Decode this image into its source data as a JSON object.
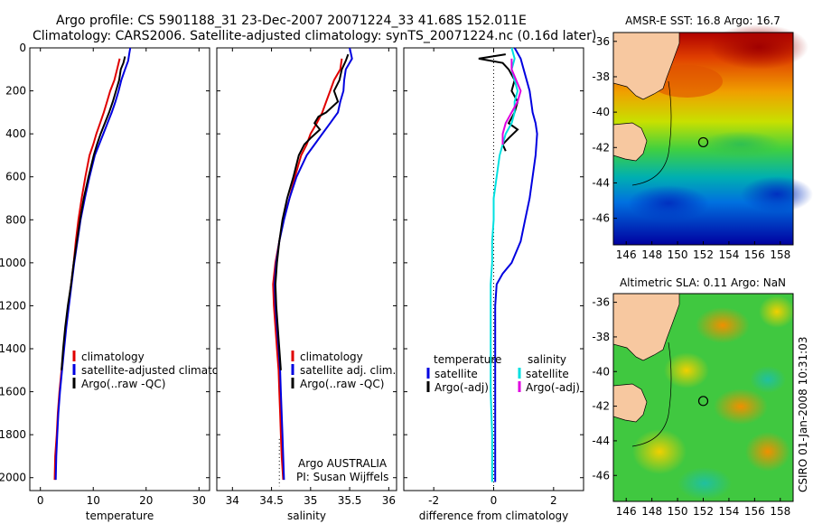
{
  "header": {
    "line1": "Argo profile: CS 5901188_31 23-Dec-2007 20071224_33 41.68S 152.011E",
    "line2": "Climatology: CARS2006. Satellite-adjusted climatology: synTS_20071224.nc (0.16d later)"
  },
  "side_stamp": "CSIRO 01-Jan-2008 10:31:03",
  "colors": {
    "red": "#e00000",
    "blue": "#0000e0",
    "black": "#000000",
    "cyan": "#00e0e0",
    "magenta": "#e000e0",
    "land": "#f7c8a0"
  },
  "chart_data": [
    {
      "id": "temperature",
      "type": "line",
      "xlabel": "temperature",
      "xlim": [
        -2,
        32
      ],
      "xticks": [
        0,
        10,
        20,
        30
      ],
      "ylim": [
        0,
        2060
      ],
      "yticks": [
        0,
        200,
        400,
        600,
        800,
        1000,
        1200,
        1400,
        1600,
        1800,
        2000
      ],
      "yreversed": true,
      "legend": [
        "climatology",
        "satellite-adjusted climatolog",
        "Argo(..raw -QC)"
      ],
      "legend_colors": [
        "#e00000",
        "#0000e0",
        "#000000"
      ],
      "series": [
        {
          "color": "#e00000",
          "points": [
            [
              15,
              50
            ],
            [
              14.5,
              100
            ],
            [
              14,
              150
            ],
            [
              13.2,
              200
            ],
            [
              12.6,
              250
            ],
            [
              12,
              300
            ],
            [
              11.3,
              350
            ],
            [
              10.6,
              400
            ],
            [
              10,
              450
            ],
            [
              9.3,
              500
            ],
            [
              8.5,
              600
            ],
            [
              7.8,
              700
            ],
            [
              7.2,
              800
            ],
            [
              6.7,
              900
            ],
            [
              6.3,
              1000
            ],
            [
              5.8,
              1100
            ],
            [
              5.3,
              1200
            ],
            [
              4.8,
              1300
            ],
            [
              4.4,
              1400
            ],
            [
              4,
              1500
            ],
            [
              3.6,
              1600
            ],
            [
              3.3,
              1700
            ],
            [
              3.1,
              1800
            ],
            [
              2.8,
              1900
            ],
            [
              2.7,
              2010
            ]
          ]
        },
        {
          "color": "#0000e0",
          "points": [
            [
              17,
              0
            ],
            [
              16.8,
              30
            ],
            [
              16.6,
              60
            ],
            [
              16,
              100
            ],
            [
              15.3,
              150
            ],
            [
              14.8,
              200
            ],
            [
              14.2,
              250
            ],
            [
              13.5,
              300
            ],
            [
              12.7,
              350
            ],
            [
              11.9,
              400
            ],
            [
              11.1,
              450
            ],
            [
              10.3,
              500
            ],
            [
              9.3,
              600
            ],
            [
              8.4,
              700
            ],
            [
              7.6,
              800
            ],
            [
              7,
              900
            ],
            [
              6.4,
              1000
            ],
            [
              5.9,
              1100
            ],
            [
              5.4,
              1200
            ],
            [
              4.9,
              1300
            ],
            [
              4.5,
              1400
            ],
            [
              4.1,
              1500
            ],
            [
              3.7,
              1600
            ],
            [
              3.4,
              1700
            ],
            [
              3.2,
              1800
            ],
            [
              3,
              1900
            ],
            [
              2.9,
              2010
            ]
          ]
        },
        {
          "color": "#000000",
          "points": [
            [
              16,
              40
            ],
            [
              15.7,
              70
            ],
            [
              15.2,
              100
            ],
            [
              14.9,
              150
            ],
            [
              14.3,
              200
            ],
            [
              13.7,
              250
            ],
            [
              13,
              300
            ],
            [
              12.2,
              350
            ],
            [
              11.4,
              400
            ],
            [
              10.7,
              450
            ],
            [
              10.1,
              500
            ],
            [
              9.1,
              600
            ],
            [
              8.2,
              700
            ],
            [
              7.5,
              800
            ],
            [
              6.9,
              900
            ],
            [
              6.3,
              1000
            ],
            [
              5.8,
              1100
            ],
            [
              5.2,
              1200
            ],
            [
              4.7,
              1300
            ],
            [
              4.3,
              1400
            ],
            [
              4,
              1500
            ]
          ]
        }
      ]
    },
    {
      "id": "salinity",
      "type": "line",
      "xlabel": "salinity",
      "xlim": [
        33.8,
        36.1
      ],
      "xticks": [
        34,
        34.5,
        35,
        35.5,
        36
      ],
      "ylim": [
        0,
        2060
      ],
      "yreversed": true,
      "legend": [
        "climatology",
        "satellite adj. clim.",
        "Argo(..raw -QC)"
      ],
      "legend_colors": [
        "#e00000",
        "#0000e0",
        "#000000"
      ],
      "annotation": [
        "Argo AUSTRALIA",
        "PI: Susan Wijffels"
      ],
      "series": [
        {
          "color": "#e00000",
          "points": [
            [
              35.4,
              50
            ],
            [
              35.38,
              100
            ],
            [
              35.3,
              150
            ],
            [
              35.25,
              200
            ],
            [
              35.2,
              250
            ],
            [
              35.15,
              300
            ],
            [
              35.08,
              350
            ],
            [
              35,
              400
            ],
            [
              34.95,
              450
            ],
            [
              34.88,
              500
            ],
            [
              34.8,
              600
            ],
            [
              34.73,
              700
            ],
            [
              34.65,
              800
            ],
            [
              34.6,
              900
            ],
            [
              34.55,
              1000
            ],
            [
              34.52,
              1100
            ],
            [
              34.53,
              1200
            ],
            [
              34.55,
              1300
            ],
            [
              34.57,
              1400
            ],
            [
              34.59,
              1500
            ],
            [
              34.6,
              1600
            ],
            [
              34.61,
              1700
            ],
            [
              34.62,
              1800
            ],
            [
              34.63,
              1900
            ],
            [
              34.65,
              2010
            ]
          ]
        },
        {
          "color": "#0000e0",
          "points": [
            [
              35.5,
              0
            ],
            [
              35.53,
              50
            ],
            [
              35.45,
              100
            ],
            [
              35.43,
              150
            ],
            [
              35.42,
              200
            ],
            [
              35.38,
              250
            ],
            [
              35.35,
              300
            ],
            [
              35.25,
              350
            ],
            [
              35.15,
              400
            ],
            [
              35.05,
              450
            ],
            [
              34.95,
              500
            ],
            [
              34.82,
              600
            ],
            [
              34.73,
              700
            ],
            [
              34.66,
              800
            ],
            [
              34.6,
              900
            ],
            [
              34.56,
              1000
            ],
            [
              34.54,
              1100
            ],
            [
              34.55,
              1200
            ],
            [
              34.57,
              1300
            ],
            [
              34.59,
              1400
            ],
            [
              34.61,
              1500
            ],
            [
              34.62,
              1600
            ],
            [
              34.63,
              1700
            ],
            [
              34.64,
              1800
            ],
            [
              34.65,
              1900
            ],
            [
              34.66,
              2010
            ]
          ]
        },
        {
          "color": "#000000",
          "points": [
            [
              35.48,
              30
            ],
            [
              35.45,
              60
            ],
            [
              35.4,
              100
            ],
            [
              35.37,
              150
            ],
            [
              35.3,
              200
            ],
            [
              35.35,
              250
            ],
            [
              35.2,
              300
            ],
            [
              35.1,
              320
            ],
            [
              35.05,
              350
            ],
            [
              35.12,
              380
            ],
            [
              35,
              420
            ],
            [
              34.92,
              450
            ],
            [
              34.85,
              500
            ],
            [
              34.78,
              600
            ],
            [
              34.7,
              700
            ],
            [
              34.64,
              800
            ],
            [
              34.6,
              900
            ],
            [
              34.57,
              1000
            ],
            [
              34.55,
              1100
            ],
            [
              34.56,
              1200
            ],
            [
              34.58,
              1300
            ],
            [
              34.6,
              1400
            ],
            [
              34.62,
              1500
            ]
          ]
        }
      ]
    },
    {
      "id": "difference",
      "type": "line",
      "xlabel": "difference from climatology",
      "xlim": [
        -3,
        3
      ],
      "xticks": [
        -2,
        0,
        2
      ],
      "ylim": [
        0,
        2060
      ],
      "yreversed": true,
      "legend_left_title": "temperature",
      "legend_left": [
        "satellite",
        "Argo(-adj)"
      ],
      "legend_left_colors": [
        "#0000e0",
        "#000000"
      ],
      "legend_right_title": "salinity",
      "legend_right": [
        "satellite",
        "Argo(-adj)"
      ],
      "legend_right_colors": [
        "#00e0e0",
        "#e000e0"
      ],
      "series": [
        {
          "color": "#0000e0",
          "points": [
            [
              0.7,
              0
            ],
            [
              0.9,
              50
            ],
            [
              1,
              100
            ],
            [
              1.1,
              150
            ],
            [
              1.2,
              200
            ],
            [
              1.25,
              250
            ],
            [
              1.3,
              300
            ],
            [
              1.4,
              350
            ],
            [
              1.45,
              400
            ],
            [
              1.4,
              500
            ],
            [
              1.3,
              600
            ],
            [
              1.2,
              700
            ],
            [
              1.05,
              800
            ],
            [
              0.9,
              900
            ],
            [
              0.6,
              1000
            ],
            [
              0.3,
              1050
            ],
            [
              0.1,
              1100
            ],
            [
              0.05,
              1200
            ],
            [
              0.05,
              1400
            ],
            [
              0.05,
              1600
            ],
            [
              0.05,
              1800
            ],
            [
              0.05,
              2020
            ]
          ]
        },
        {
          "color": "#000000",
          "points": [
            [
              0.4,
              30
            ],
            [
              -0.5,
              50
            ],
            [
              0.3,
              70
            ],
            [
              0.5,
              100
            ],
            [
              0.7,
              150
            ],
            [
              0.6,
              200
            ],
            [
              0.8,
              250
            ],
            [
              0.7,
              300
            ],
            [
              0.5,
              350
            ],
            [
              0.8,
              380
            ],
            [
              0.5,
              420
            ],
            [
              0.3,
              450
            ],
            [
              0.4,
              480
            ]
          ]
        },
        {
          "color": "#00e0e0",
          "points": [
            [
              0.6,
              0
            ],
            [
              0.7,
              50
            ],
            [
              0.6,
              100
            ],
            [
              0.7,
              150
            ],
            [
              0.8,
              200
            ],
            [
              0.7,
              250
            ],
            [
              0.7,
              300
            ],
            [
              0.6,
              350
            ],
            [
              0.4,
              400
            ],
            [
              0.3,
              450
            ],
            [
              0.2,
              500
            ],
            [
              0.1,
              600
            ],
            [
              0,
              700
            ],
            [
              0,
              800
            ],
            [
              -0.05,
              900
            ],
            [
              -0.05,
              1000
            ],
            [
              -0.1,
              1100
            ],
            [
              -0.1,
              1200
            ],
            [
              -0.1,
              1400
            ],
            [
              -0.1,
              1600
            ],
            [
              -0.05,
              1800
            ],
            [
              -0.05,
              2020
            ]
          ]
        },
        {
          "color": "#e000e0",
          "points": [
            [
              0.6,
              50
            ],
            [
              0.6,
              100
            ],
            [
              0.9,
              200
            ],
            [
              0.8,
              250
            ],
            [
              0.6,
              300
            ],
            [
              0.4,
              350
            ],
            [
              0.3,
              400
            ],
            [
              0.3,
              450
            ]
          ]
        }
      ]
    }
  ],
  "maps": [
    {
      "id": "sst",
      "title": "AMSR-E SST: 16.8  Argo: 16.7",
      "lon_range": [
        145,
        159
      ],
      "lat_range": [
        -47.5,
        -35.5
      ],
      "xticks": [
        146,
        148,
        150,
        152,
        154,
        156,
        158
      ],
      "yticks": [
        -36,
        -38,
        -40,
        -42,
        -44,
        -46
      ],
      "marker": [
        152.0,
        -41.7
      ]
    },
    {
      "id": "sla",
      "title": "Altimetric SLA: 0.11  Argo: NaN",
      "lon_range": [
        145,
        159
      ],
      "lat_range": [
        -47.5,
        -35.5
      ],
      "xticks": [
        146,
        148,
        150,
        152,
        154,
        156,
        158
      ],
      "yticks": [
        -36,
        -38,
        -40,
        -42,
        -44,
        -46
      ],
      "marker": [
        152.0,
        -41.7
      ]
    }
  ]
}
